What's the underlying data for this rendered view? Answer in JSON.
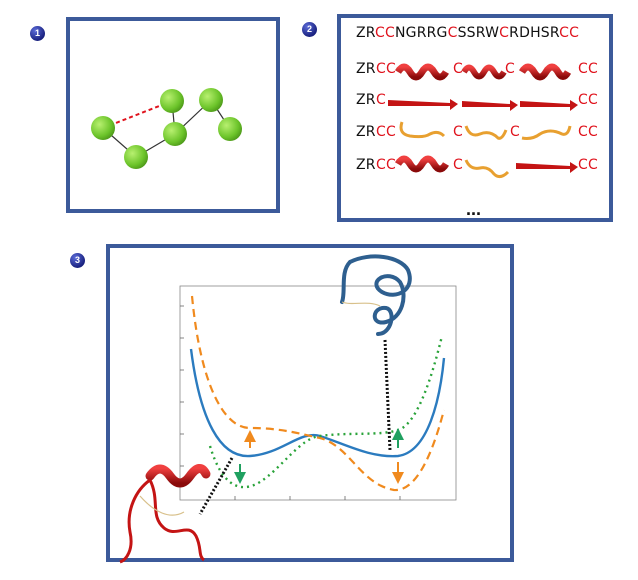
{
  "badges": {
    "step1": "1",
    "step2": "2",
    "step3": "3"
  },
  "sequence": {
    "full_prefix": "ZR",
    "full_tokens": [
      {
        "t": "ZR",
        "red": false
      },
      {
        "t": "CC",
        "red": true
      },
      {
        "t": "NGRRG",
        "red": false
      },
      {
        "t": "C",
        "red": true
      },
      {
        "t": "SSRW",
        "red": false
      },
      {
        "t": "C",
        "red": true
      },
      {
        "t": "RDHSR",
        "red": false
      },
      {
        "t": "CC",
        "red": true
      }
    ],
    "row_prefix": "ZR",
    "cys_pair": "CC",
    "cys_single": "C",
    "ellipsis": "..."
  },
  "colors": {
    "frame": "#3c5a9a",
    "node": "#7bd23a",
    "cysteine": "#e0141e",
    "helix": "#d21a1a",
    "coil": "#e8a030",
    "solid_curve": "#2b7bbf",
    "dashed_curve": "#f08a1e",
    "dotted_curve": "#2aa33a"
  }
}
